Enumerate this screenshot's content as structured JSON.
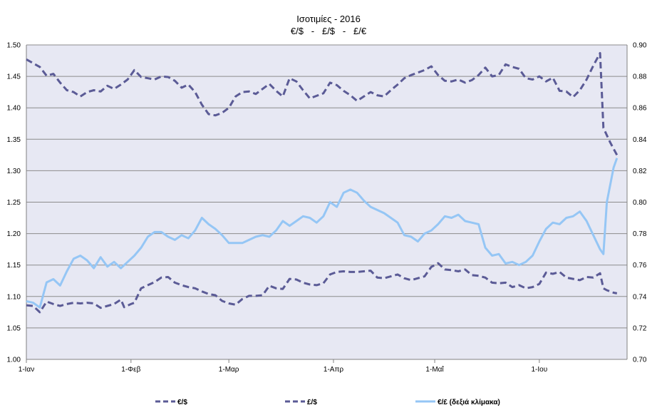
{
  "chart_data": {
    "type": "line",
    "title": "Ισοτιμίες - 2016",
    "subtitle": "€/$   -   £/$   -   £/€",
    "x_ticks": [
      "1-Ιαν",
      "1-Φεβ",
      "1-Μαρ",
      "1-Απρ",
      "1-Μαΐ",
      "1-Ιου"
    ],
    "x_tick_days": [
      0,
      31,
      60,
      91,
      121,
      152
    ],
    "x_range": [
      0,
      178
    ],
    "ylim_left": [
      1.0,
      1.5
    ],
    "ylim_right": [
      0.7,
      0.9
    ],
    "yticks_left": [
      "1.00",
      "1.05",
      "1.10",
      "1.15",
      "1.20",
      "1.25",
      "1.30",
      "1.35",
      "1.40",
      "1.45",
      "1.50"
    ],
    "yticks_right": [
      "0.70",
      "0.72",
      "0.74",
      "0.76",
      "0.78",
      "0.80",
      "0.82",
      "0.84",
      "0.86",
      "0.88",
      "0.90"
    ],
    "grid": true,
    "legend_position": "bottom",
    "colors": {
      "plot_bg": "#e7e8f3",
      "grid": "#8c8c8c",
      "dark_series": "#5b5b96",
      "light_series": "#95c6f5"
    },
    "series": [
      {
        "name": "€/$",
        "axis": "left",
        "style": "dashed",
        "color": "#5b5b96",
        "points": [
          [
            0,
            1.086
          ],
          [
            2,
            1.085
          ],
          [
            4,
            1.075
          ],
          [
            6,
            1.092
          ],
          [
            8,
            1.088
          ],
          [
            10,
            1.085
          ],
          [
            12,
            1.088
          ],
          [
            14,
            1.09
          ],
          [
            16,
            1.089
          ],
          [
            18,
            1.09
          ],
          [
            20,
            1.089
          ],
          [
            22,
            1.082
          ],
          [
            24,
            1.085
          ],
          [
            26,
            1.088
          ],
          [
            28,
            1.095
          ],
          [
            29,
            1.083
          ],
          [
            31,
            1.088
          ],
          [
            32,
            1.09
          ],
          [
            34,
            1.113
          ],
          [
            36,
            1.118
          ],
          [
            38,
            1.123
          ],
          [
            40,
            1.13
          ],
          [
            42,
            1.131
          ],
          [
            44,
            1.122
          ],
          [
            46,
            1.118
          ],
          [
            48,
            1.115
          ],
          [
            50,
            1.113
          ],
          [
            52,
            1.108
          ],
          [
            54,
            1.104
          ],
          [
            56,
            1.102
          ],
          [
            58,
            1.093
          ],
          [
            60,
            1.089
          ],
          [
            62,
            1.087
          ],
          [
            64,
            1.096
          ],
          [
            66,
            1.101
          ],
          [
            68,
            1.101
          ],
          [
            70,
            1.102
          ],
          [
            72,
            1.117
          ],
          [
            74,
            1.113
          ],
          [
            76,
            1.112
          ],
          [
            78,
            1.128
          ],
          [
            80,
            1.127
          ],
          [
            82,
            1.122
          ],
          [
            84,
            1.119
          ],
          [
            86,
            1.118
          ],
          [
            88,
            1.121
          ],
          [
            90,
            1.135
          ],
          [
            92,
            1.139
          ],
          [
            94,
            1.14
          ],
          [
            96,
            1.139
          ],
          [
            98,
            1.139
          ],
          [
            100,
            1.14
          ],
          [
            102,
            1.141
          ],
          [
            104,
            1.13
          ],
          [
            106,
            1.129
          ],
          [
            108,
            1.132
          ],
          [
            110,
            1.135
          ],
          [
            112,
            1.129
          ],
          [
            114,
            1.126
          ],
          [
            116,
            1.129
          ],
          [
            118,
            1.132
          ],
          [
            120,
            1.147
          ],
          [
            122,
            1.153
          ],
          [
            124,
            1.143
          ],
          [
            126,
            1.142
          ],
          [
            128,
            1.14
          ],
          [
            130,
            1.143
          ],
          [
            132,
            1.134
          ],
          [
            134,
            1.133
          ],
          [
            136,
            1.13
          ],
          [
            138,
            1.122
          ],
          [
            140,
            1.121
          ],
          [
            142,
            1.122
          ],
          [
            144,
            1.115
          ],
          [
            146,
            1.118
          ],
          [
            148,
            1.113
          ],
          [
            150,
            1.115
          ],
          [
            152,
            1.12
          ],
          [
            154,
            1.138
          ],
          [
            156,
            1.136
          ],
          [
            158,
            1.139
          ],
          [
            160,
            1.13
          ],
          [
            162,
            1.128
          ],
          [
            164,
            1.126
          ],
          [
            166,
            1.131
          ],
          [
            168,
            1.13
          ],
          [
            170,
            1.137
          ],
          [
            171,
            1.113
          ],
          [
            172,
            1.11
          ],
          [
            174,
            1.106
          ],
          [
            175,
            1.105
          ]
        ]
      },
      {
        "name": "£/$",
        "axis": "left",
        "style": "dashed",
        "color": "#5b5b96",
        "points": [
          [
            0,
            1.477
          ],
          [
            2,
            1.471
          ],
          [
            4,
            1.465
          ],
          [
            6,
            1.451
          ],
          [
            8,
            1.454
          ],
          [
            10,
            1.44
          ],
          [
            12,
            1.428
          ],
          [
            14,
            1.425
          ],
          [
            16,
            1.418
          ],
          [
            18,
            1.425
          ],
          [
            20,
            1.428
          ],
          [
            22,
            1.426
          ],
          [
            24,
            1.435
          ],
          [
            26,
            1.43
          ],
          [
            28,
            1.437
          ],
          [
            30,
            1.445
          ],
          [
            32,
            1.46
          ],
          [
            34,
            1.449
          ],
          [
            36,
            1.447
          ],
          [
            38,
            1.445
          ],
          [
            40,
            1.45
          ],
          [
            42,
            1.449
          ],
          [
            44,
            1.443
          ],
          [
            46,
            1.432
          ],
          [
            48,
            1.437
          ],
          [
            50,
            1.425
          ],
          [
            52,
            1.405
          ],
          [
            54,
            1.39
          ],
          [
            56,
            1.388
          ],
          [
            58,
            1.392
          ],
          [
            60,
            1.4
          ],
          [
            62,
            1.418
          ],
          [
            64,
            1.425
          ],
          [
            66,
            1.426
          ],
          [
            68,
            1.422
          ],
          [
            70,
            1.43
          ],
          [
            72,
            1.438
          ],
          [
            74,
            1.427
          ],
          [
            76,
            1.418
          ],
          [
            78,
            1.447
          ],
          [
            80,
            1.442
          ],
          [
            82,
            1.428
          ],
          [
            84,
            1.415
          ],
          [
            86,
            1.419
          ],
          [
            88,
            1.423
          ],
          [
            90,
            1.44
          ],
          [
            92,
            1.436
          ],
          [
            94,
            1.427
          ],
          [
            96,
            1.42
          ],
          [
            98,
            1.411
          ],
          [
            100,
            1.418
          ],
          [
            102,
            1.425
          ],
          [
            104,
            1.42
          ],
          [
            106,
            1.418
          ],
          [
            108,
            1.428
          ],
          [
            110,
            1.437
          ],
          [
            112,
            1.447
          ],
          [
            114,
            1.452
          ],
          [
            116,
            1.456
          ],
          [
            118,
            1.46
          ],
          [
            120,
            1.466
          ],
          [
            122,
            1.452
          ],
          [
            124,
            1.443
          ],
          [
            126,
            1.442
          ],
          [
            128,
            1.445
          ],
          [
            130,
            1.44
          ],
          [
            132,
            1.444
          ],
          [
            134,
            1.452
          ],
          [
            136,
            1.464
          ],
          [
            138,
            1.45
          ],
          [
            140,
            1.452
          ],
          [
            142,
            1.469
          ],
          [
            144,
            1.465
          ],
          [
            146,
            1.462
          ],
          [
            148,
            1.447
          ],
          [
            150,
            1.445
          ],
          [
            152,
            1.45
          ],
          [
            154,
            1.442
          ],
          [
            156,
            1.448
          ],
          [
            158,
            1.427
          ],
          [
            160,
            1.426
          ],
          [
            162,
            1.417
          ],
          [
            164,
            1.428
          ],
          [
            166,
            1.445
          ],
          [
            168,
            1.467
          ],
          [
            170,
            1.487
          ],
          [
            171,
            1.368
          ],
          [
            173,
            1.345
          ],
          [
            175,
            1.325
          ]
        ]
      },
      {
        "name": "€/£ (δεξιά κλίμακα)",
        "axis": "right",
        "style": "solid",
        "color": "#95c6f5",
        "points": [
          [
            0,
            0.737
          ],
          [
            2,
            0.736
          ],
          [
            4,
            0.733
          ],
          [
            6,
            0.749
          ],
          [
            8,
            0.751
          ],
          [
            10,
            0.747
          ],
          [
            12,
            0.756
          ],
          [
            14,
            0.764
          ],
          [
            16,
            0.766
          ],
          [
            18,
            0.763
          ],
          [
            20,
            0.758
          ],
          [
            22,
            0.765
          ],
          [
            24,
            0.759
          ],
          [
            26,
            0.762
          ],
          [
            28,
            0.758
          ],
          [
            30,
            0.762
          ],
          [
            32,
            0.766
          ],
          [
            34,
            0.771
          ],
          [
            36,
            0.778
          ],
          [
            38,
            0.781
          ],
          [
            40,
            0.781
          ],
          [
            42,
            0.778
          ],
          [
            44,
            0.776
          ],
          [
            46,
            0.779
          ],
          [
            48,
            0.777
          ],
          [
            50,
            0.782
          ],
          [
            52,
            0.79
          ],
          [
            54,
            0.786
          ],
          [
            56,
            0.783
          ],
          [
            58,
            0.779
          ],
          [
            60,
            0.774
          ],
          [
            62,
            0.774
          ],
          [
            64,
            0.774
          ],
          [
            66,
            0.776
          ],
          [
            68,
            0.778
          ],
          [
            70,
            0.779
          ],
          [
            72,
            0.778
          ],
          [
            74,
            0.782
          ],
          [
            76,
            0.788
          ],
          [
            78,
            0.785
          ],
          [
            80,
            0.788
          ],
          [
            82,
            0.791
          ],
          [
            84,
            0.79
          ],
          [
            86,
            0.787
          ],
          [
            88,
            0.791
          ],
          [
            90,
            0.8
          ],
          [
            92,
            0.797
          ],
          [
            94,
            0.806
          ],
          [
            96,
            0.808
          ],
          [
            98,
            0.806
          ],
          [
            100,
            0.801
          ],
          [
            102,
            0.797
          ],
          [
            104,
            0.795
          ],
          [
            106,
            0.793
          ],
          [
            108,
            0.79
          ],
          [
            110,
            0.787
          ],
          [
            112,
            0.779
          ],
          [
            114,
            0.778
          ],
          [
            116,
            0.775
          ],
          [
            118,
            0.78
          ],
          [
            120,
            0.782
          ],
          [
            122,
            0.786
          ],
          [
            124,
            0.791
          ],
          [
            126,
            0.79
          ],
          [
            128,
            0.792
          ],
          [
            130,
            0.788
          ],
          [
            132,
            0.787
          ],
          [
            134,
            0.786
          ],
          [
            136,
            0.771
          ],
          [
            138,
            0.766
          ],
          [
            140,
            0.767
          ],
          [
            142,
            0.761
          ],
          [
            144,
            0.762
          ],
          [
            146,
            0.76
          ],
          [
            148,
            0.762
          ],
          [
            150,
            0.766
          ],
          [
            152,
            0.775
          ],
          [
            154,
            0.783
          ],
          [
            156,
            0.787
          ],
          [
            158,
            0.786
          ],
          [
            160,
            0.79
          ],
          [
            162,
            0.791
          ],
          [
            164,
            0.794
          ],
          [
            166,
            0.788
          ],
          [
            168,
            0.779
          ],
          [
            170,
            0.77
          ],
          [
            171,
            0.767
          ],
          [
            172,
            0.8
          ],
          [
            174,
            0.822
          ],
          [
            175,
            0.828
          ]
        ]
      }
    ]
  }
}
